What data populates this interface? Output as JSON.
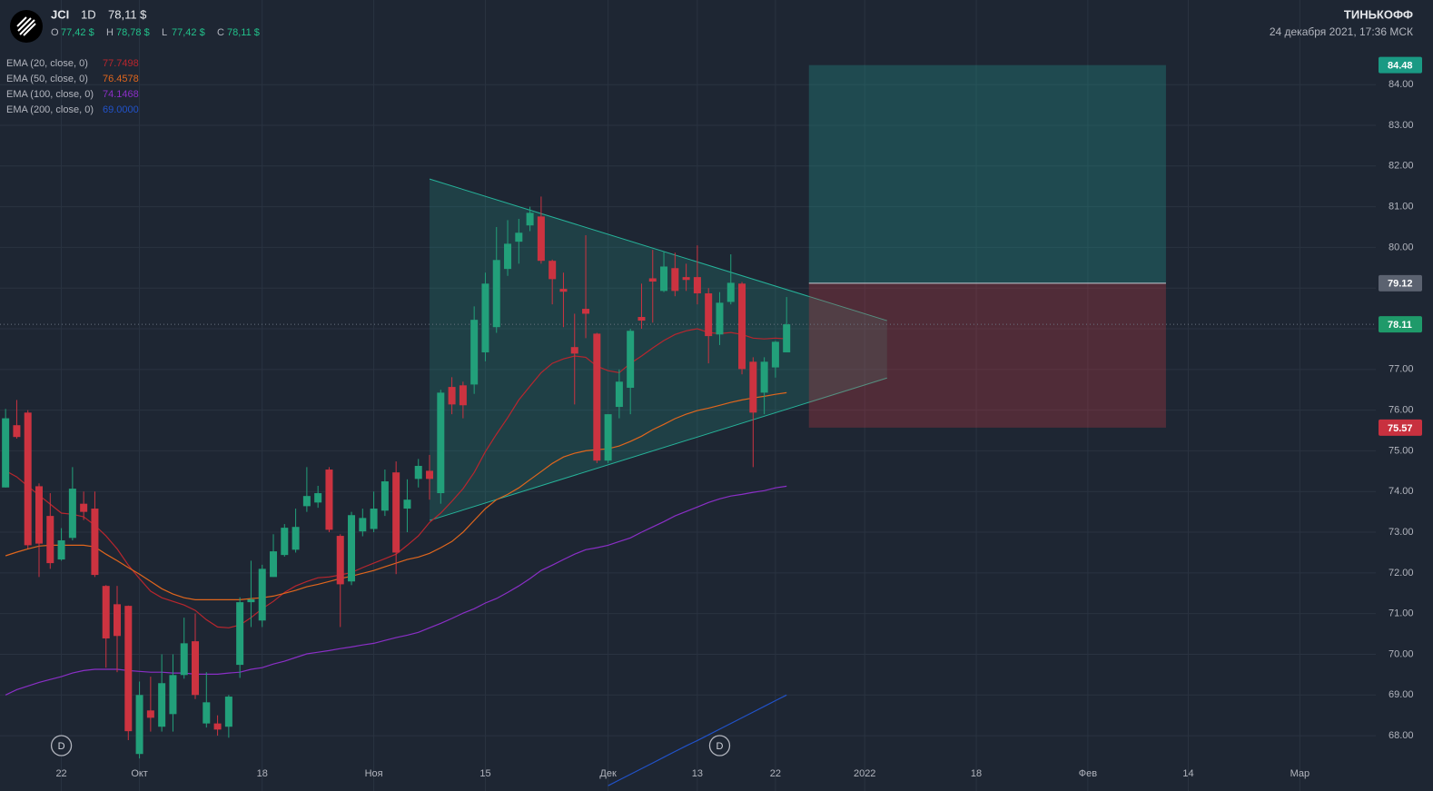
{
  "header": {
    "symbol": "JCI",
    "interval": "1D",
    "price": "78,11 $",
    "ohlc": [
      {
        "key": "O",
        "value": "77,42 $"
      },
      {
        "key": "H",
        "value": "78,78 $"
      },
      {
        "key": "L",
        "value": "77,42 $"
      },
      {
        "key": "C",
        "value": "78,11 $"
      }
    ],
    "brand": "ТИНЬКОФФ",
    "datetime": "24 декабря 2021, 17:36 МСК"
  },
  "chart_data": {
    "type": "candlestick",
    "xlim": [
      -0.5,
      122.4
    ],
    "xticks": [
      {
        "value": 5,
        "label": "22"
      },
      {
        "value": 12,
        "label": "Окт"
      },
      {
        "value": 23,
        "label": "18"
      },
      {
        "value": 33,
        "label": "Ноя"
      },
      {
        "value": 43,
        "label": "15"
      },
      {
        "value": 54,
        "label": "Дек"
      },
      {
        "value": 62,
        "label": "13"
      },
      {
        "value": 69,
        "label": "22"
      },
      {
        "value": 77,
        "label": "2022"
      },
      {
        "value": 87,
        "label": "18"
      },
      {
        "value": 97,
        "label": "Фев"
      },
      {
        "value": 106,
        "label": "14"
      },
      {
        "value": 116,
        "label": "Мар"
      }
    ],
    "ylim": [
      66.64,
      86.08
    ],
    "yticks": [
      {
        "value": 68,
        "label": "68.00"
      },
      {
        "value": 69,
        "label": "69.00"
      },
      {
        "value": 70,
        "label": "70.00"
      },
      {
        "value": 71,
        "label": "71.00"
      },
      {
        "value": 72,
        "label": "72.00"
      },
      {
        "value": 73,
        "label": "73.00"
      },
      {
        "value": 74,
        "label": "74.00"
      },
      {
        "value": 75,
        "label": "75.00"
      },
      {
        "value": 76,
        "label": "76.00"
      },
      {
        "value": 77,
        "label": "77.00"
      },
      {
        "value": 78,
        "label": "78.00"
      },
      {
        "value": 79,
        "label": "79.00"
      },
      {
        "value": 80,
        "label": "80.00"
      },
      {
        "value": 81,
        "label": "81.00"
      },
      {
        "value": 82,
        "label": "82.00"
      },
      {
        "value": 83,
        "label": "83.00"
      },
      {
        "value": 84,
        "label": "84.00"
      }
    ],
    "grid": true,
    "up_color": "#22a07a",
    "down_color": "#cc3340",
    "open": [
      74.1,
      75.63,
      75.94,
      74.13,
      73.4,
      72.33,
      72.86,
      73.7,
      73.58,
      71.68,
      71.23,
      71.19,
      67.55,
      68.62,
      68.22,
      68.53,
      69.49,
      70.32,
      68.3,
      68.3,
      68.22,
      69.74,
      71.28,
      70.83,
      71.9,
      72.44,
      72.57,
      73.64,
      73.73,
      74.54,
      72.91,
      71.79,
      73.02,
      73.08,
      73.53,
      74.47,
      73.58,
      74.31,
      74.51,
      73.96,
      76.57,
      76.61,
      76.63,
      77.42,
      78.04,
      79.47,
      80.14,
      80.54,
      80.76,
      79.67,
      78.98,
      77.55,
      78.49,
      77.88,
      74.76,
      76.08,
      76.55,
      78.29,
      79.24,
      78.93,
      79.49,
      79.27,
      79.27,
      78.87,
      77.86,
      78.66,
      79.11,
      77.19,
      76.43,
      77.05,
      77.42
    ],
    "high": [
      76.03,
      76.25,
      76.0,
      74.2,
      73.96,
      73.1,
      74.6,
      74.0,
      74.0,
      71.7,
      71.68,
      71.2,
      69.33,
      69.45,
      70.0,
      70.0,
      70.9,
      71.0,
      69.56,
      68.5,
      69.0,
      71.4,
      72.3,
      72.2,
      72.95,
      73.2,
      73.58,
      74.6,
      74.14,
      74.6,
      72.95,
      73.5,
      73.58,
      74.0,
      74.54,
      74.74,
      74.3,
      74.8,
      74.9,
      76.5,
      76.81,
      76.7,
      78.55,
      79.38,
      80.5,
      80.67,
      80.7,
      81.0,
      81.25,
      79.7,
      79.38,
      78.37,
      80.3,
      77.9,
      75.9,
      77.0,
      78.0,
      79.11,
      79.94,
      79.9,
      79.87,
      79.6,
      80.05,
      79.0,
      78.9,
      79.83,
      79.15,
      77.3,
      77.3,
      77.7,
      78.78
    ],
    "low": [
      74.1,
      75.3,
      72.6,
      71.9,
      72.1,
      72.3,
      72.8,
      73.3,
      71.9,
      69.67,
      69.56,
      67.89,
      67.44,
      68.1,
      68.1,
      68.1,
      69.4,
      68.9,
      68.2,
      68.0,
      67.95,
      69.42,
      70.67,
      70.67,
      71.9,
      72.4,
      72.5,
      73.5,
      73.6,
      73.0,
      70.67,
      71.7,
      72.9,
      73.0,
      73.4,
      71.97,
      73.0,
      74.1,
      73.8,
      73.7,
      75.9,
      75.8,
      76.4,
      77.2,
      77.9,
      79.3,
      79.6,
      80.4,
      79.6,
      78.6,
      78.04,
      76.14,
      77.77,
      74.7,
      74.7,
      75.8,
      75.9,
      78.0,
      78.15,
      78.9,
      78.8,
      78.93,
      78.6,
      77.15,
      77.6,
      78.6,
      76.88,
      74.6,
      75.9,
      76.8,
      77.42
    ],
    "close": [
      75.8,
      75.34,
      72.68,
      72.72,
      72.24,
      72.8,
      74.07,
      73.5,
      71.95,
      70.39,
      70.45,
      68.11,
      69.0,
      68.44,
      69.29,
      69.49,
      70.27,
      69.0,
      68.82,
      68.15,
      68.96,
      71.28,
      71.35,
      72.1,
      72.53,
      73.11,
      73.13,
      73.89,
      73.96,
      73.06,
      71.72,
      73.42,
      73.35,
      73.58,
      74.25,
      72.5,
      73.8,
      74.63,
      74.31,
      76.43,
      76.14,
      76.12,
      78.22,
      79.11,
      79.69,
      80.09,
      80.36,
      80.85,
      79.67,
      79.22,
      78.91,
      77.39,
      78.37,
      74.76,
      75.9,
      76.7,
      77.95,
      78.2,
      79.16,
      79.53,
      78.93,
      79.2,
      78.87,
      77.82,
      78.64,
      79.13,
      77.01,
      75.94,
      77.19,
      77.68,
      78.11
    ],
    "series": [
      {
        "name": "EMA (20, close, 0)",
        "color": "#b8262e",
        "value_label": "77.7498",
        "values": [
          74.51,
          74.36,
          74.13,
          73.91,
          73.69,
          73.47,
          73.44,
          73.38,
          73.17,
          72.91,
          72.59,
          72.19,
          71.86,
          71.55,
          71.39,
          71.3,
          71.21,
          71.08,
          70.85,
          70.67,
          70.65,
          70.72,
          70.9,
          71.12,
          71.3,
          71.52,
          71.68,
          71.79,
          71.88,
          71.9,
          71.95,
          72.01,
          72.13,
          72.24,
          72.35,
          72.46,
          72.68,
          72.91,
          73.24,
          73.47,
          73.76,
          74.07,
          74.47,
          74.98,
          75.41,
          75.81,
          76.25,
          76.59,
          76.92,
          77.15,
          77.26,
          77.33,
          77.3,
          77.08,
          76.97,
          76.92,
          77.15,
          77.33,
          77.53,
          77.71,
          77.86,
          77.95,
          78.0,
          77.91,
          77.88,
          77.91,
          77.86,
          77.77,
          77.75,
          77.77,
          77.75
        ]
      },
      {
        "name": "EMA (50, close, 0)",
        "color": "#e0661d",
        "value_label": "76.4578",
        "values": [
          72.42,
          72.51,
          72.59,
          72.66,
          72.68,
          72.68,
          72.68,
          72.68,
          72.64,
          72.46,
          72.3,
          72.13,
          71.97,
          71.79,
          71.61,
          71.48,
          71.39,
          71.34,
          71.34,
          71.34,
          71.34,
          71.34,
          71.37,
          71.39,
          71.43,
          71.5,
          71.57,
          71.66,
          71.72,
          71.79,
          71.86,
          71.92,
          71.99,
          72.06,
          72.15,
          72.24,
          72.33,
          72.39,
          72.48,
          72.62,
          72.77,
          73.0,
          73.29,
          73.58,
          73.8,
          73.93,
          74.09,
          74.29,
          74.49,
          74.69,
          74.85,
          74.94,
          75.0,
          75.03,
          75.05,
          75.12,
          75.23,
          75.36,
          75.52,
          75.65,
          75.79,
          75.9,
          75.99,
          76.05,
          76.12,
          76.19,
          76.25,
          76.3,
          76.34,
          76.39,
          76.43
        ]
      },
      {
        "name": "EMA (100, close, 0)",
        "color": "#8a2fc6",
        "value_label": "74.1468",
        "values": [
          69.0,
          69.13,
          69.22,
          69.31,
          69.38,
          69.45,
          69.54,
          69.6,
          69.63,
          69.63,
          69.63,
          69.6,
          69.58,
          69.56,
          69.56,
          69.54,
          69.54,
          69.51,
          69.51,
          69.51,
          69.54,
          69.56,
          69.63,
          69.67,
          69.76,
          69.83,
          69.92,
          70.01,
          70.05,
          70.09,
          70.14,
          70.18,
          70.23,
          70.27,
          70.34,
          70.41,
          70.47,
          70.54,
          70.65,
          70.76,
          70.88,
          71.01,
          71.12,
          71.26,
          71.37,
          71.52,
          71.68,
          71.86,
          72.06,
          72.19,
          72.33,
          72.46,
          72.57,
          72.62,
          72.68,
          72.77,
          72.86,
          73.0,
          73.13,
          73.26,
          73.4,
          73.51,
          73.62,
          73.73,
          73.82,
          73.89,
          73.93,
          73.98,
          74.02,
          74.09,
          74.13
        ]
      },
      {
        "name": "EMA (200, close, 0)",
        "color": "#2152c9",
        "value_label": "69.0000",
        "values": [
          null,
          null,
          null,
          null,
          null,
          null,
          null,
          null,
          null,
          null,
          null,
          null,
          null,
          null,
          null,
          null,
          null,
          null,
          null,
          null,
          null,
          null,
          null,
          null,
          null,
          null,
          null,
          null,
          null,
          null,
          null,
          null,
          null,
          null,
          null,
          null,
          null,
          null,
          null,
          null,
          null,
          null,
          null,
          null,
          null,
          null,
          null,
          null,
          null,
          null,
          null,
          null,
          null,
          null,
          66.77,
          66.91,
          67.05,
          67.19,
          67.33,
          67.47,
          67.61,
          67.75,
          67.88,
          68.02,
          68.16,
          68.3,
          68.44,
          68.58,
          68.72,
          68.86,
          69.0
        ]
      }
    ],
    "last_price": 78.11,
    "position": {
      "x": [
        72,
        104
      ],
      "target": 84.48,
      "entry": 79.12,
      "stop": 75.57
    },
    "triangle": {
      "x": [
        38,
        79
      ],
      "upper": [
        81.68,
        78.2
      ],
      "lower": [
        73.29,
        76.79
      ]
    },
    "dividends": {
      "x": [
        5,
        64
      ],
      "labels": [
        "D",
        "D"
      ]
    }
  }
}
